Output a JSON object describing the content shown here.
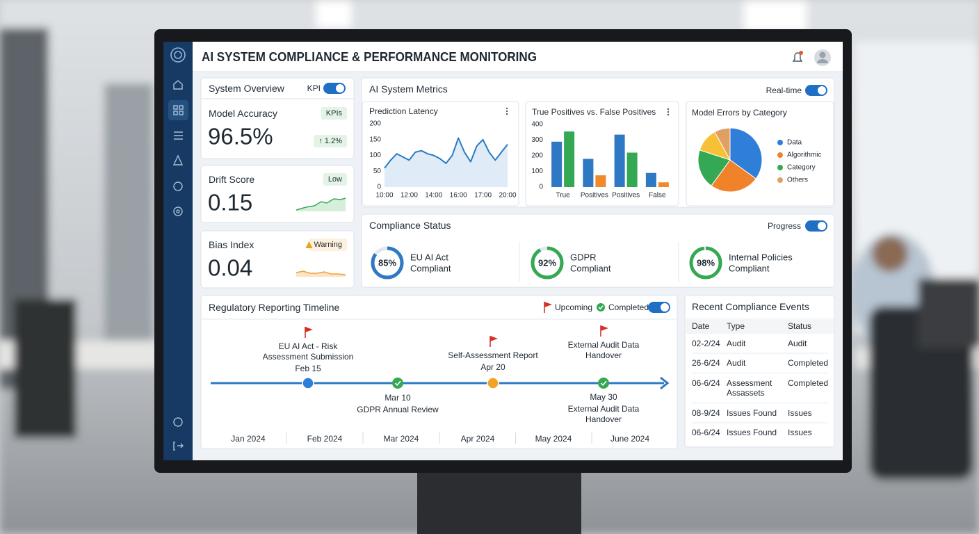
{
  "header": {
    "title": "AI SYSTEM COMPLIANCE & PERFORMANCE MONITORING"
  },
  "overview": {
    "title": "System Overview",
    "toggle": "KPI",
    "cards": [
      {
        "label": "Model Accuracy",
        "value": "96.5%",
        "badge": "KPIs",
        "badge_color": "#2e8b3e",
        "badge_bg": "#e3f4e6",
        "change": "↑ 1.2%"
      },
      {
        "label": "Drift Score",
        "value": "0.15",
        "badge": "Low",
        "badge_color": "#2e8b3e",
        "badge_bg": "#e3f4e6"
      },
      {
        "label": "Bias Index",
        "value": "0.04",
        "badge": "Warning",
        "badge_color": "#c77a12",
        "badge_bg": "#fdf0dc"
      }
    ]
  },
  "metrics": {
    "title": "AI System Metrics",
    "toggle": "Real-time"
  },
  "chart_data": [
    {
      "type": "line",
      "title": "Prediction Latency",
      "categories": [
        "10:00",
        null,
        null,
        null,
        "12:00",
        null,
        null,
        null,
        "14:00",
        null,
        null,
        null,
        "16:00",
        null,
        null,
        null,
        "17:00",
        null,
        null,
        null,
        "20:00"
      ],
      "values": [
        60,
        85,
        105,
        95,
        85,
        110,
        115,
        105,
        100,
        90,
        75,
        100,
        155,
        110,
        80,
        130,
        150,
        110,
        85,
        110,
        135
      ],
      "color": "#2a7bc0",
      "area": true,
      "grid": false,
      "ylim": [
        0,
        200
      ],
      "yticks": [
        0,
        50,
        100,
        150,
        200
      ]
    },
    {
      "type": "bar",
      "title": "True Positives vs. False Positives",
      "categories": [
        "True",
        "Positives",
        "Positives",
        "False"
      ],
      "series": [
        {
          "color": "#2f78c4",
          "values": [
            290,
            180,
            335,
            90
          ]
        },
        {
          "colors": [
            "#34a853",
            "#f0892a",
            "#34a853",
            "#f0892a"
          ],
          "values": [
            355,
            75,
            220,
            30
          ]
        }
      ],
      "ylim": [
        0,
        400
      ],
      "yticks": [
        0,
        100,
        200,
        300,
        400
      ]
    },
    {
      "type": "pie",
      "title": "Model Errors by Category",
      "categories": [
        "Data",
        "Algorithmic",
        "Category",
        null,
        "Others"
      ],
      "values": [
        35,
        25,
        20,
        12,
        8
      ],
      "colors": [
        "#2f7ed8",
        "#f0832a",
        "#34a853",
        "#f6c136",
        "#e0a063"
      ]
    }
  ],
  "compliance": {
    "title": "Compliance Status",
    "toggle": "Progress",
    "items": [
      {
        "value": 85,
        "value_label": "85%",
        "name": "EU AI Act",
        "status": "Compliant",
        "color": "#2f78c4"
      },
      {
        "value": 92,
        "value_label": "92%",
        "name": "GDPR",
        "status": "Compliant",
        "color": "#34a853"
      },
      {
        "value": 98,
        "value_label": "98%",
        "name": "Internal Policies",
        "status": "Compliant",
        "color": "#34a853"
      }
    ]
  },
  "timeline": {
    "title": "Regulatory Reporting Timeline",
    "legend": [
      "Upcoming",
      "Completed"
    ],
    "months": [
      "Jan 2024",
      "Feb 2024",
      "Mar 2024",
      "Apr 2024",
      "May 2024",
      "June 2024"
    ],
    "events": [
      {
        "lines": [
          "EU AI Act - Risk",
          "Assessment Submission"
        ],
        "date": "Feb 15",
        "side": "above",
        "flag": true,
        "marker": "dot",
        "color": "#2f7ed8"
      },
      {
        "date": "Mar 10",
        "lines": [
          "GDPR Annual Review"
        ],
        "side": "below",
        "marker": "check",
        "color": "#34a853"
      },
      {
        "lines": [
          "Self-Assessment Report"
        ],
        "date": "Apr 20",
        "side": "above",
        "flag": true,
        "marker": "dot",
        "color": "#f4a124"
      },
      {
        "lines": [
          "External Audit Data",
          "Handover"
        ],
        "side": "above",
        "flag": true
      },
      {
        "date": "May 30",
        "lines": [
          "External Audit Data",
          "Handover"
        ],
        "side": "below",
        "marker": "check",
        "color": "#34a853"
      }
    ]
  },
  "events": {
    "title": "Recent Compliance Events",
    "columns": [
      "Date",
      "Type",
      "Status"
    ],
    "rows": [
      {
        "date": "02-2/24",
        "type": [
          "Audit"
        ],
        "status": "Audit",
        "color": "#2e9e45"
      },
      {
        "date": "26-6/24",
        "type": [
          "Audit"
        ],
        "status": "Completed",
        "color": "#2e9e45"
      },
      {
        "date": "06-6/24",
        "type": [
          "Assessment",
          "Assassets"
        ],
        "status": "Completed",
        "color": "#2e9e45"
      },
      {
        "date": "08-9/24",
        "type": [
          "Issues Found"
        ],
        "status": "Issues",
        "color": "#d93025"
      },
      {
        "date": "06-6/24",
        "type": [
          "Issues Found"
        ],
        "status": "Issues",
        "color": "#d93025"
      }
    ]
  }
}
